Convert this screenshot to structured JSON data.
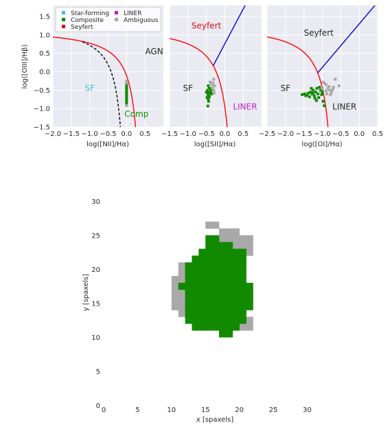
{
  "colors": {
    "panel_bg": "#EAEAF2",
    "grid": "#FFFFFF",
    "sf": "#3CC4D0",
    "composite": "#118A00",
    "seyfert": "#DD1111",
    "liner": "#C020C0",
    "ambiguous": "#A9A9A9",
    "kewley_curve": "#FF0000",
    "kauffmann_curve": "#000000",
    "seyfert_liner_line": "#0000DD"
  },
  "chart_data": [
    {
      "type": "scatter",
      "panel": "NII",
      "xlabel": "log([NII]/Hα)",
      "ylabel": "log([OIII]/Hβ)",
      "xlim": [
        -2.0,
        1.0
      ],
      "ylim": [
        -1.5,
        1.8
      ],
      "xticks": [
        -2.0,
        -1.5,
        -1.0,
        -0.5,
        0.0,
        0.5
      ],
      "xtick_labels": [
        "−2.0",
        "−1.5",
        "−1.0",
        "−0.5",
        "0.0",
        "0.5"
      ],
      "yticks": [
        -1.5,
        -1.0,
        -0.5,
        0.0,
        0.5,
        1.0,
        1.5
      ],
      "ytick_labels": [
        "−1.5",
        "−1.0",
        "−0.5",
        "0.0",
        "0.5",
        "1.0",
        "1.5"
      ],
      "legend": [
        "Star-forming",
        "Composite",
        "Seyfert",
        "LINER",
        "Ambiguous"
      ],
      "legend_position": "top-right",
      "region_labels": [
        {
          "text": "SF",
          "x": -1.0,
          "y": -0.45,
          "color": "sf"
        },
        {
          "text": "AGN",
          "x": 0.75,
          "y": 0.55,
          "color": "text"
        },
        {
          "text": "Comp",
          "x": 0.27,
          "y": -1.15,
          "color": "composite"
        }
      ],
      "series": [
        {
          "name": "Composite",
          "color": "composite",
          "points": [
            [
              0.0,
              -0.35
            ],
            [
              0.0,
              -0.42
            ],
            [
              0.0,
              -0.48
            ],
            [
              0.0,
              -0.55
            ],
            [
              0.0,
              -0.6
            ],
            [
              0.0,
              -0.66
            ],
            [
              0.0,
              -0.72
            ],
            [
              0.0,
              -0.78
            ],
            [
              0.0,
              -0.85
            ]
          ]
        },
        {
          "name": "Ambiguous",
          "color": "ambiguous",
          "points": [
            [
              0.0,
              -0.25
            ],
            [
              0.0,
              -0.3
            ],
            [
              0.0,
              -0.92
            ]
          ]
        }
      ],
      "curves": [
        "kewley_nii",
        "kauffmann_nii"
      ]
    },
    {
      "type": "scatter",
      "panel": "SII",
      "xlabel": "log([SII]/Hα)",
      "xlim": [
        -1.5,
        1.0
      ],
      "ylim": [
        -1.5,
        1.8
      ],
      "xticks": [
        -1.5,
        -1.0,
        -0.5,
        0.0,
        0.5
      ],
      "xtick_labels": [
        "−1.5",
        "−1.0",
        "−0.5",
        "0.0",
        "0.5"
      ],
      "region_labels": [
        {
          "text": "Seyfert",
          "x": -0.5,
          "y": 1.25,
          "color": "seyfert"
        },
        {
          "text": "SF",
          "x": -1.0,
          "y": -0.45,
          "color": "text"
        },
        {
          "text": "LINER",
          "x": 0.55,
          "y": -0.95,
          "color": "liner"
        }
      ],
      "series": [
        {
          "name": "Composite",
          "color": "composite",
          "points": [
            [
              -0.45,
              -0.38
            ],
            [
              -0.42,
              -0.45
            ],
            [
              -0.47,
              -0.5
            ],
            [
              -0.44,
              -0.55
            ],
            [
              -0.4,
              -0.58
            ],
            [
              -0.46,
              -0.62
            ],
            [
              -0.43,
              -0.66
            ],
            [
              -0.48,
              -0.7
            ],
            [
              -0.45,
              -0.74
            ],
            [
              -0.38,
              -0.52
            ],
            [
              -0.36,
              -0.6
            ],
            [
              -0.5,
              -0.55
            ],
            [
              -0.44,
              -0.8
            ],
            [
              -0.46,
              -0.93
            ],
            [
              -0.35,
              -0.45
            ],
            [
              -0.42,
              -0.68
            ]
          ]
        },
        {
          "name": "Ambiguous",
          "color": "ambiguous",
          "points": [
            [
              -0.3,
              -0.2
            ],
            [
              -0.32,
              -0.3
            ],
            [
              -0.28,
              -0.38
            ],
            [
              -0.33,
              -0.45
            ],
            [
              -0.3,
              -0.5
            ],
            [
              -0.36,
              -0.35
            ],
            [
              -0.4,
              -0.28
            ],
            [
              -0.29,
              -0.58
            ]
          ]
        }
      ],
      "curves": [
        "kewley_sii",
        "seyfert_liner_sii"
      ]
    },
    {
      "type": "scatter",
      "panel": "OI",
      "xlabel": "log([OI]/Hα)",
      "xlim": [
        -2.5,
        0.5
      ],
      "ylim": [
        -1.5,
        1.8
      ],
      "xticks": [
        -2.5,
        -2.0,
        -1.5,
        -1.0,
        -0.5,
        0.0,
        0.5
      ],
      "xtick_labels": [
        "−2.5",
        "−2.0",
        "−1.5",
        "−1.0",
        "−0.5",
        "0.0",
        "0.5"
      ],
      "region_labels": [
        {
          "text": "Seyfert",
          "x": -1.1,
          "y": 1.05,
          "color": "text"
        },
        {
          "text": "SF",
          "x": -2.0,
          "y": -0.45,
          "color": "text"
        },
        {
          "text": "LINER",
          "x": -0.4,
          "y": -0.95,
          "color": "text"
        }
      ],
      "series": [
        {
          "name": "Composite",
          "color": "composite",
          "points": [
            [
              -1.55,
              -0.62
            ],
            [
              -1.48,
              -0.6
            ],
            [
              -1.42,
              -0.63
            ],
            [
              -1.38,
              -0.58
            ],
            [
              -1.32,
              -0.55
            ],
            [
              -1.28,
              -0.6
            ],
            [
              -1.25,
              -0.5
            ],
            [
              -1.22,
              -0.65
            ],
            [
              -1.18,
              -0.55
            ],
            [
              -1.15,
              -0.45
            ],
            [
              -1.12,
              -0.6
            ],
            [
              -1.1,
              -0.7
            ],
            [
              -1.05,
              -0.5
            ],
            [
              -1.02,
              -0.62
            ],
            [
              -0.98,
              -0.8
            ],
            [
              -1.3,
              -0.45
            ],
            [
              -1.35,
              -0.68
            ],
            [
              -1.2,
              -0.72
            ],
            [
              -0.95,
              -0.92
            ],
            [
              -1.08,
              -0.42
            ],
            [
              -1.0,
              -0.55
            ],
            [
              -1.45,
              -0.65
            ],
            [
              -1.26,
              -0.58
            ],
            [
              -1.16,
              -0.78
            ]
          ]
        },
        {
          "name": "Ambiguous",
          "color": "ambiguous",
          "points": [
            [
              -0.95,
              -0.3
            ],
            [
              -0.9,
              -0.35
            ],
            [
              -0.85,
              -0.45
            ],
            [
              -0.8,
              -0.5
            ],
            [
              -0.75,
              -0.55
            ],
            [
              -0.7,
              -0.42
            ],
            [
              -0.65,
              -0.2
            ],
            [
              -0.55,
              -0.38
            ],
            [
              -0.88,
              -0.6
            ],
            [
              -0.82,
              -0.4
            ],
            [
              -0.9,
              -0.52
            ],
            [
              -0.78,
              -0.62
            ],
            [
              -0.72,
              -0.48
            ],
            [
              -1.0,
              -0.45
            ],
            [
              -0.98,
              -0.28
            ]
          ]
        }
      ],
      "curves": [
        "kewley_oi",
        "seyfert_liner_oi"
      ]
    },
    {
      "type": "heatmap",
      "panel": "spaxel_map",
      "xlabel": "x [spaxels]",
      "ylabel": "y [spaxels]",
      "xlim": [
        0,
        34
      ],
      "ylim": [
        0,
        30
      ],
      "xticks": [
        0,
        5,
        10,
        15,
        20,
        25,
        30
      ],
      "yticks": [
        0,
        5,
        10,
        15,
        20,
        25,
        30
      ],
      "green_rows": [
        [
          10,
          17,
          18
        ],
        [
          11,
          13,
          19
        ],
        [
          12,
          12,
          20
        ],
        [
          13,
          12,
          20
        ],
        [
          14,
          12,
          21
        ],
        [
          15,
          12,
          21
        ],
        [
          16,
          12,
          21
        ],
        [
          17,
          11,
          21
        ],
        [
          18,
          12,
          20
        ],
        [
          19,
          12,
          20
        ],
        [
          20,
          12,
          20
        ],
        [
          21,
          13,
          20
        ],
        [
          22,
          14,
          20
        ],
        [
          23,
          15,
          18
        ],
        [
          24,
          15,
          16
        ]
      ],
      "grey_rows": [
        [
          11,
          20,
          21
        ],
        [
          12,
          21,
          21
        ],
        [
          13,
          11,
          11
        ],
        [
          14,
          10,
          11
        ],
        [
          15,
          10,
          11
        ],
        [
          16,
          10,
          11
        ],
        [
          17,
          10,
          10
        ],
        [
          18,
          10,
          11
        ],
        [
          19,
          11,
          11
        ],
        [
          20,
          11,
          11
        ],
        [
          22,
          21,
          21
        ],
        [
          23,
          19,
          21
        ],
        [
          24,
          17,
          21
        ],
        [
          25,
          17,
          19
        ],
        [
          26,
          15,
          16
        ]
      ]
    }
  ]
}
